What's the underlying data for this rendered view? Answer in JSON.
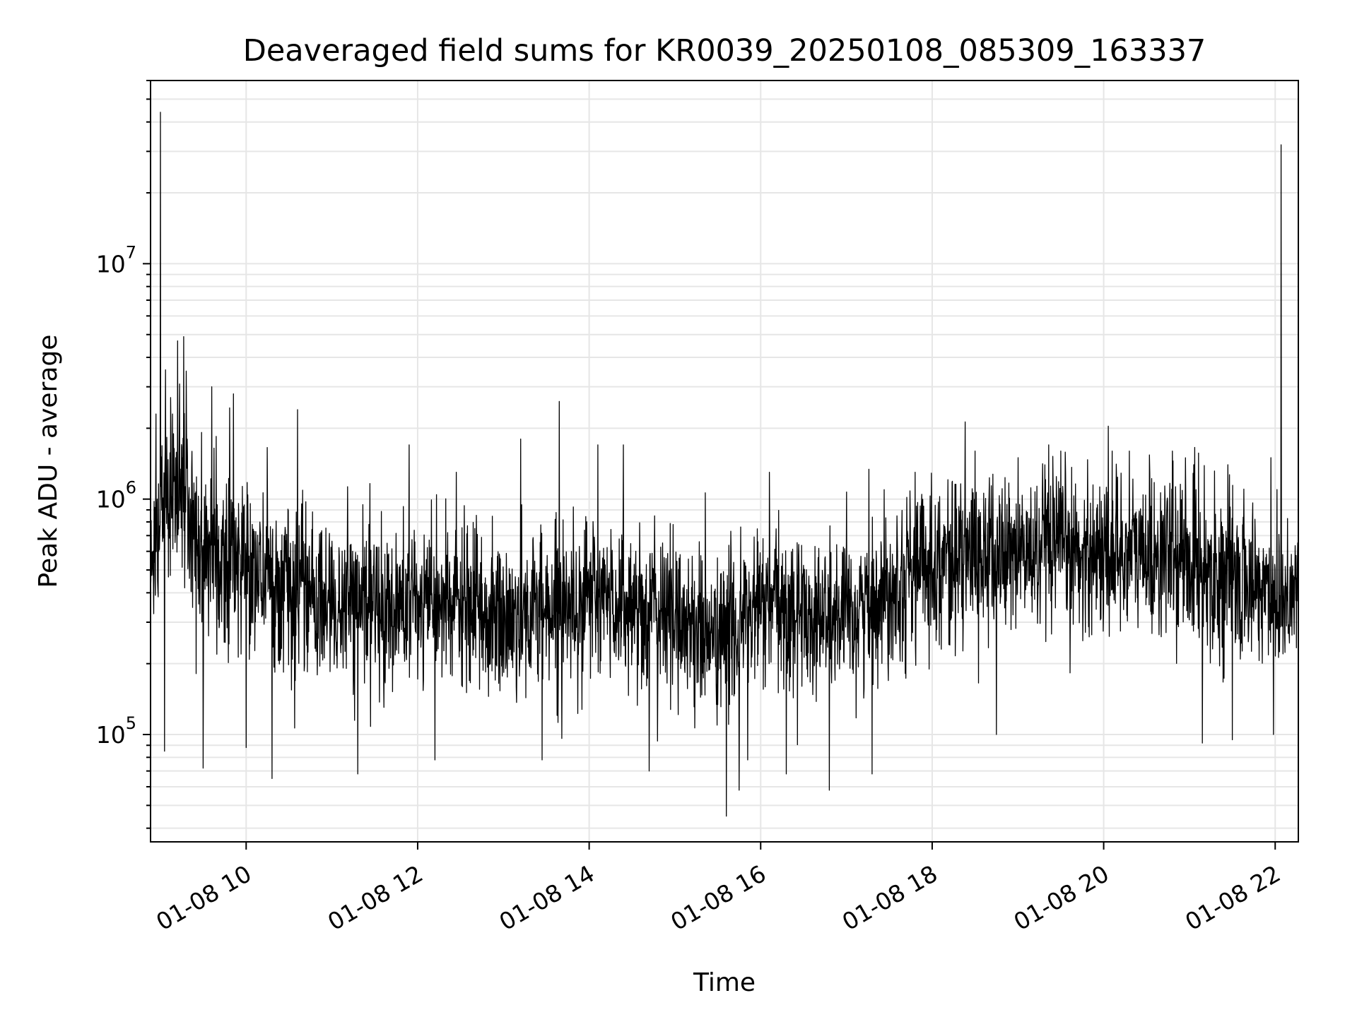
{
  "chart_data": {
    "type": "line",
    "title": "Deaveraged field sums for KR0039_20250108_085309_163337",
    "xlabel": "Time",
    "ylabel": "Peak ADU - average",
    "yscale": "log",
    "ylim": [
      35000,
      60000000
    ],
    "xlim_hours": [
      8.885,
      22.27
    ],
    "grid": true,
    "line_color": "#000000",
    "grid_color": "#e6e6e6",
    "x_ticks": [
      {
        "hour": 10,
        "label": "01-08 10"
      },
      {
        "hour": 12,
        "label": "01-08 12"
      },
      {
        "hour": 14,
        "label": "01-08 14"
      },
      {
        "hour": 16,
        "label": "01-08 16"
      },
      {
        "hour": 18,
        "label": "01-08 18"
      },
      {
        "hour": 20,
        "label": "01-08 20"
      },
      {
        "hour": 22,
        "label": "01-08 22"
      }
    ],
    "y_ticks": [
      {
        "value": 100000,
        "base": "10",
        "exp": "5"
      },
      {
        "value": 1000000,
        "base": "10",
        "exp": "6"
      },
      {
        "value": 10000000,
        "base": "10",
        "exp": "7"
      }
    ],
    "series": [
      {
        "name": "field sums",
        "baseline": [
          [
            8.885,
            450000
          ],
          [
            9.0,
            900000
          ],
          [
            9.2,
            1200000
          ],
          [
            9.4,
            700000
          ],
          [
            9.7,
            550000
          ],
          [
            10.0,
            550000
          ],
          [
            10.5,
            400000
          ],
          [
            11.0,
            350000
          ],
          [
            12.0,
            350000
          ],
          [
            12.5,
            350000
          ],
          [
            13.0,
            300000
          ],
          [
            13.5,
            350000
          ],
          [
            14.0,
            380000
          ],
          [
            14.5,
            350000
          ],
          [
            15.0,
            320000
          ],
          [
            15.5,
            250000
          ],
          [
            16.0,
            350000
          ],
          [
            16.5,
            330000
          ],
          [
            17.0,
            300000
          ],
          [
            17.5,
            430000
          ],
          [
            18.0,
            550000
          ],
          [
            19.0,
            580000
          ],
          [
            20.0,
            600000
          ],
          [
            21.0,
            560000
          ],
          [
            21.5,
            450000
          ],
          [
            22.0,
            400000
          ],
          [
            22.27,
            420000
          ]
        ],
        "spikes": [
          [
            8.95,
            2300000
          ],
          [
            9.0,
            44000000
          ],
          [
            9.05,
            85000
          ],
          [
            9.12,
            2700000
          ],
          [
            9.2,
            4700000
          ],
          [
            9.27,
            4900000
          ],
          [
            9.3,
            3500000
          ],
          [
            9.5,
            72000
          ],
          [
            9.6,
            3000000
          ],
          [
            9.85,
            2800000
          ],
          [
            10.0,
            88000
          ],
          [
            10.3,
            65000
          ],
          [
            10.6,
            2400000
          ],
          [
            11.3,
            68000
          ],
          [
            11.9,
            1700000
          ],
          [
            12.2,
            78000
          ],
          [
            12.45,
            1300000
          ],
          [
            13.2,
            1800000
          ],
          [
            13.45,
            78000
          ],
          [
            13.65,
            2600000
          ],
          [
            14.1,
            1700000
          ],
          [
            14.4,
            1700000
          ],
          [
            14.7,
            70000
          ],
          [
            15.6,
            45000
          ],
          [
            15.75,
            58000
          ],
          [
            15.85,
            78000
          ],
          [
            16.1,
            1300000
          ],
          [
            16.3,
            68000
          ],
          [
            16.8,
            58000
          ],
          [
            17.3,
            68000
          ],
          [
            17.8,
            1300000
          ],
          [
            18.5,
            1600000
          ],
          [
            18.75,
            100000
          ],
          [
            19.0,
            1500000
          ],
          [
            19.5,
            1600000
          ],
          [
            20.1,
            1600000
          ],
          [
            20.3,
            1600000
          ],
          [
            20.8,
            1600000
          ],
          [
            21.05,
            1400000
          ],
          [
            21.15,
            92000
          ],
          [
            21.45,
            1400000
          ],
          [
            21.5,
            95000
          ],
          [
            21.95,
            1500000
          ],
          [
            21.98,
            100000
          ],
          [
            22.07,
            32000000
          ],
          [
            22.09,
            220000
          ]
        ]
      }
    ]
  }
}
